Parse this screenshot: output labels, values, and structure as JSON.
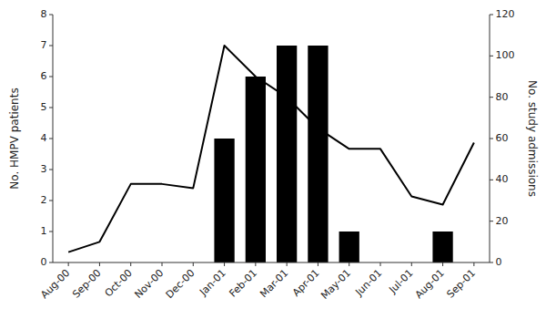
{
  "chart_data": {
    "type": "bar",
    "categories": [
      "Aug-00",
      "Sep-00",
      "Oct-00",
      "Nov-00",
      "Dec-00",
      "Jan-01",
      "Feb-01",
      "Mar-01",
      "Apr-01",
      "May-01",
      "Jun-01",
      "Jul-01",
      "Aug-01",
      "Sep-01"
    ],
    "series": [
      {
        "type": "bar",
        "color": "#000000",
        "values": [
          0,
          0,
          0,
          0,
          0,
          4,
          6,
          7,
          7,
          1,
          0,
          0,
          1,
          0
        ]
      },
      {
        "type": "line",
        "color": "#000000",
        "axis": "y2",
        "values": [
          5,
          10,
          38,
          38,
          36,
          105,
          90,
          80,
          65,
          55,
          55,
          32,
          28,
          58
        ]
      }
    ],
    "ylabel": "No. HMPV patients",
    "y2label": "No. study admissions",
    "ylim": [
      0,
      8
    ],
    "yticks": [
      0,
      1,
      2,
      3,
      4,
      5,
      6,
      7,
      8
    ],
    "y2lim": [
      0,
      120
    ],
    "y2ticks": [
      0,
      20,
      40,
      60,
      80,
      100,
      120
    ],
    "grid": false
  }
}
